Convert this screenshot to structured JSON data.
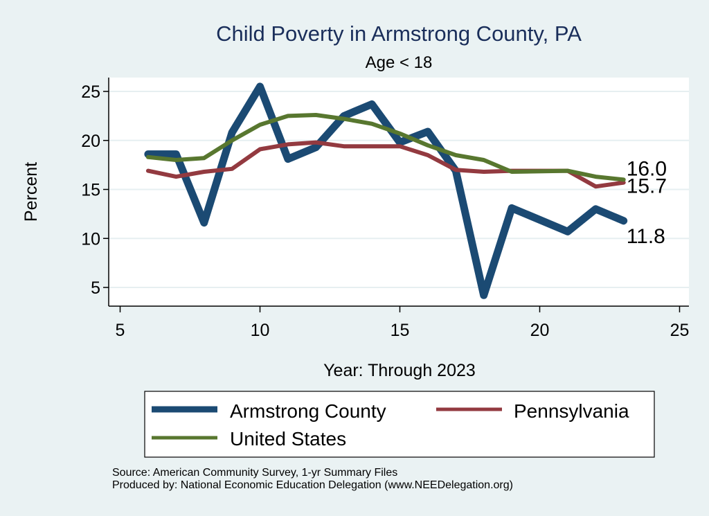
{
  "chart_data": {
    "type": "line",
    "title": "Child Poverty in Armstrong County, PA",
    "subtitle": "Age < 18",
    "xlabel": "Year: Through 2023",
    "ylabel": "Percent",
    "xlim": [
      5,
      25
    ],
    "ylim": [
      3,
      26.5
    ],
    "xticks": [
      5,
      10,
      15,
      20,
      25
    ],
    "yticks": [
      5,
      10,
      15,
      20,
      25
    ],
    "grid": true,
    "legend_position": "bottom",
    "series": [
      {
        "name": "Armstrong County",
        "color": "#1b4a73",
        "x": [
          6,
          7,
          8,
          9,
          10,
          11,
          12,
          13,
          14,
          15,
          16,
          17,
          18,
          19,
          21,
          22,
          23
        ],
        "values": [
          18.6,
          18.6,
          11.6,
          20.8,
          25.5,
          18.1,
          19.3,
          22.5,
          23.7,
          19.8,
          20.9,
          16.9,
          4.2,
          13.1,
          10.7,
          13.0,
          11.8
        ],
        "end_label": "11.8"
      },
      {
        "name": "Pennsylvania",
        "color": "#933a40",
        "x": [
          6,
          7,
          8,
          9,
          10,
          11,
          12,
          13,
          14,
          15,
          16,
          17,
          18,
          19,
          21,
          22,
          23
        ],
        "values": [
          16.9,
          16.3,
          16.8,
          17.1,
          19.1,
          19.6,
          19.8,
          19.4,
          19.4,
          19.4,
          18.5,
          17.0,
          16.8,
          16.9,
          16.9,
          15.3,
          15.7
        ],
        "end_label": "15.7"
      },
      {
        "name": "United States",
        "color": "#58772f",
        "x": [
          6,
          7,
          8,
          9,
          10,
          11,
          12,
          13,
          14,
          15,
          16,
          17,
          18,
          19,
          21,
          22,
          23
        ],
        "values": [
          18.3,
          18.0,
          18.2,
          20.0,
          21.6,
          22.5,
          22.6,
          22.2,
          21.7,
          20.7,
          19.5,
          18.5,
          18.0,
          16.8,
          16.9,
          16.3,
          16.0
        ],
        "end_label": "16.0"
      }
    ],
    "notes": [
      "Source: American Community Survey, 1-yr Summary Files",
      "Produced by: National Economic Education Delegation (www.NEEDelegation.org)"
    ]
  }
}
